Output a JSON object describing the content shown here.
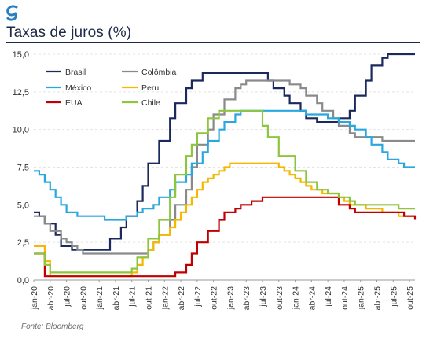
{
  "header": {
    "logo_letter": "g",
    "title": "Taxas de juros (%)"
  },
  "source": "Fonte: Bloomberg",
  "colors": {
    "brand": "#2c7fbf",
    "title": "#1b2a47"
  },
  "chart_data": {
    "type": "line",
    "title": "Taxas de juros (%)",
    "xlabel": "",
    "ylabel": "",
    "ylim": [
      0,
      15
    ],
    "yticks": [
      "0,0",
      "2,5",
      "5,0",
      "7,5",
      "10,0",
      "12,5",
      "15,0"
    ],
    "ytick_values": [
      0,
      2.5,
      5,
      7.5,
      10,
      12.5,
      15
    ],
    "grid": true,
    "legend_position": "top-left",
    "x_dates": [
      "jan-20",
      "fev-20",
      "mar-20",
      "abr-20",
      "mai-20",
      "jun-20",
      "jul-20",
      "ago-20",
      "set-20",
      "out-20",
      "nov-20",
      "dez-20",
      "jan-21",
      "fev-21",
      "mar-21",
      "abr-21",
      "mai-21",
      "jun-21",
      "jul-21",
      "ago-21",
      "set-21",
      "out-21",
      "nov-21",
      "dez-21",
      "jan-22",
      "fev-22",
      "mar-22",
      "abr-22",
      "mai-22",
      "jun-22",
      "jul-22",
      "ago-22",
      "set-22",
      "out-22",
      "nov-22",
      "dez-22",
      "jan-23",
      "fev-23",
      "mar-23",
      "abr-23",
      "mai-23",
      "jun-23",
      "jul-23",
      "ago-23",
      "set-23",
      "out-23",
      "nov-23",
      "dez-23",
      "jan-24",
      "fev-24",
      "mar-24",
      "abr-24",
      "mai-24",
      "jun-24",
      "jul-24",
      "ago-24",
      "set-24",
      "out-24",
      "nov-24",
      "dez-24",
      "jan-25",
      "fev-25",
      "mar-25",
      "abr-25",
      "mai-25",
      "jun-25",
      "jul-25",
      "ago-25",
      "set-25",
      "out-25",
      "nov-25"
    ],
    "x_tick_labels": [
      "jan-20",
      "abr-20",
      "jul-20",
      "out-20",
      "jan-21",
      "abr-21",
      "jul-21",
      "out-21",
      "jan-22",
      "abr-22",
      "jul-22",
      "out-22",
      "jan-23",
      "abr-23",
      "jul-23",
      "out-23",
      "jan-24",
      "abr-24",
      "jul-24",
      "out-24",
      "jan-25",
      "abr-25",
      "jul-25",
      "out-25"
    ],
    "series": [
      {
        "name": "Brasil",
        "color": "#1b2a5e",
        "values": [
          4.5,
          4.25,
          3.75,
          3.75,
          3.0,
          2.25,
          2.25,
          2.0,
          2.0,
          2.0,
          2.0,
          2.0,
          2.0,
          2.0,
          2.75,
          2.75,
          3.5,
          4.25,
          4.25,
          5.25,
          6.25,
          7.75,
          7.75,
          9.25,
          9.25,
          10.75,
          11.75,
          11.75,
          12.75,
          13.25,
          13.25,
          13.75,
          13.75,
          13.75,
          13.75,
          13.75,
          13.75,
          13.75,
          13.75,
          13.75,
          13.75,
          13.75,
          13.75,
          13.25,
          12.75,
          12.75,
          12.25,
          11.75,
          11.75,
          11.25,
          10.75,
          10.75,
          10.5,
          10.5,
          10.5,
          10.5,
          10.75,
          10.75,
          11.25,
          12.25,
          12.25,
          13.25,
          14.25,
          14.25,
          14.75,
          15.0,
          15.0,
          15.0,
          15.0,
          15.0,
          15.0
        ]
      },
      {
        "name": "Colômbia",
        "color": "#8a8a8a",
        "values": [
          4.25,
          4.25,
          3.75,
          3.25,
          3.25,
          2.75,
          2.5,
          2.25,
          2.0,
          1.75,
          1.75,
          1.75,
          1.75,
          1.75,
          1.75,
          1.75,
          1.75,
          1.75,
          1.75,
          1.75,
          1.75,
          2.0,
          2.5,
          3.0,
          3.0,
          4.0,
          5.0,
          5.0,
          6.0,
          7.5,
          9.0,
          9.0,
          10.0,
          11.0,
          11.0,
          12.0,
          12.0,
          12.75,
          13.0,
          13.25,
          13.25,
          13.25,
          13.25,
          13.25,
          13.25,
          13.25,
          13.25,
          13.0,
          13.0,
          12.75,
          12.25,
          12.25,
          11.75,
          11.25,
          11.25,
          10.75,
          10.25,
          10.25,
          9.75,
          9.5,
          9.5,
          9.5,
          9.5,
          9.5,
          9.25,
          9.25,
          9.25,
          9.25,
          9.25,
          9.25,
          9.25
        ]
      },
      {
        "name": "México",
        "color": "#29a8e0",
        "values": [
          7.25,
          7.0,
          6.5,
          6.0,
          5.5,
          5.0,
          4.5,
          4.5,
          4.25,
          4.25,
          4.25,
          4.25,
          4.25,
          4.0,
          4.0,
          4.0,
          4.0,
          4.25,
          4.25,
          4.5,
          4.75,
          4.75,
          5.0,
          5.5,
          5.5,
          6.0,
          6.5,
          6.5,
          7.0,
          7.75,
          7.75,
          8.5,
          9.25,
          9.25,
          10.0,
          10.5,
          10.5,
          11.0,
          11.25,
          11.25,
          11.25,
          11.25,
          11.25,
          11.25,
          11.25,
          11.25,
          11.25,
          11.25,
          11.25,
          11.25,
          11.0,
          11.0,
          11.0,
          11.0,
          10.75,
          10.75,
          10.5,
          10.5,
          10.25,
          10.0,
          10.0,
          9.5,
          9.0,
          9.0,
          8.5,
          8.0,
          8.0,
          7.75,
          7.5,
          7.5,
          7.5
        ]
      },
      {
        "name": "Peru",
        "color": "#f5b800",
        "values": [
          2.25,
          2.25,
          1.25,
          0.25,
          0.25,
          0.25,
          0.25,
          0.25,
          0.25,
          0.25,
          0.25,
          0.25,
          0.25,
          0.25,
          0.25,
          0.25,
          0.25,
          0.25,
          0.5,
          1.0,
          1.5,
          2.0,
          2.5,
          3.0,
          3.0,
          3.5,
          4.0,
          4.5,
          5.0,
          5.5,
          6.0,
          6.5,
          6.75,
          7.0,
          7.25,
          7.5,
          7.75,
          7.75,
          7.75,
          7.75,
          7.75,
          7.75,
          7.75,
          7.75,
          7.75,
          7.5,
          7.25,
          7.0,
          6.75,
          6.5,
          6.25,
          6.0,
          6.0,
          5.75,
          5.75,
          5.75,
          5.5,
          5.25,
          5.0,
          5.0,
          5.0,
          4.75,
          4.75,
          4.75,
          4.5,
          4.5,
          4.5,
          4.25,
          4.25,
          4.25,
          4.25
        ]
      },
      {
        "name": "EUA",
        "color": "#c00000",
        "values": [
          1.75,
          1.75,
          0.25,
          0.25,
          0.25,
          0.25,
          0.25,
          0.25,
          0.25,
          0.25,
          0.25,
          0.25,
          0.25,
          0.25,
          0.25,
          0.25,
          0.25,
          0.25,
          0.25,
          0.25,
          0.25,
          0.25,
          0.25,
          0.25,
          0.25,
          0.25,
          0.5,
          0.5,
          1.0,
          1.75,
          2.5,
          2.5,
          3.25,
          3.25,
          4.0,
          4.5,
          4.5,
          4.75,
          5.0,
          5.0,
          5.25,
          5.25,
          5.5,
          5.5,
          5.5,
          5.5,
          5.5,
          5.5,
          5.5,
          5.5,
          5.5,
          5.5,
          5.5,
          5.5,
          5.5,
          5.5,
          5.0,
          5.0,
          4.75,
          4.5,
          4.5,
          4.5,
          4.5,
          4.5,
          4.5,
          4.5,
          4.5,
          4.5,
          4.25,
          4.25,
          4.0
        ]
      },
      {
        "name": "Chile",
        "color": "#8cc63f",
        "values": [
          1.75,
          1.75,
          1.0,
          0.5,
          0.5,
          0.5,
          0.5,
          0.5,
          0.5,
          0.5,
          0.5,
          0.5,
          0.5,
          0.5,
          0.5,
          0.5,
          0.5,
          0.5,
          0.75,
          1.5,
          1.5,
          2.75,
          2.75,
          4.0,
          4.0,
          5.5,
          7.0,
          7.0,
          8.25,
          9.0,
          9.75,
          9.75,
          10.75,
          10.75,
          11.25,
          11.25,
          11.25,
          11.25,
          11.25,
          11.25,
          11.25,
          11.25,
          10.25,
          9.5,
          9.5,
          8.25,
          8.25,
          8.25,
          7.25,
          7.25,
          6.5,
          6.5,
          6.0,
          6.0,
          5.75,
          5.75,
          5.5,
          5.5,
          5.25,
          5.0,
          5.0,
          5.0,
          5.0,
          5.0,
          5.0,
          5.0,
          5.0,
          4.75,
          4.75,
          4.75,
          4.75
        ]
      }
    ]
  }
}
